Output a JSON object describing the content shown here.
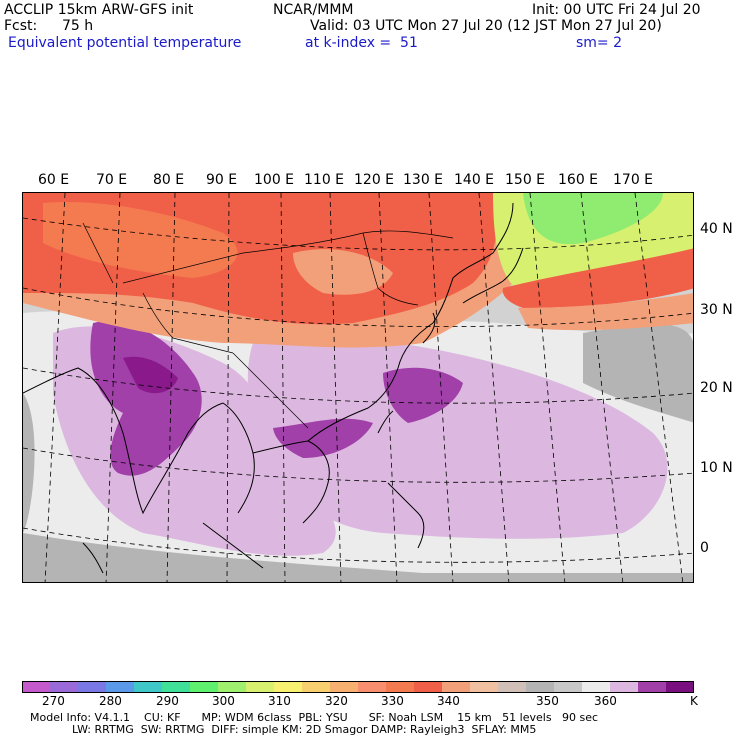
{
  "header": {
    "model": "ACCLIP 15km ARW-GFS init",
    "org": "NCAR/MMM",
    "init": "Init: 00 UTC Fri 24 Jul 20",
    "fcst_label": "Fcst:",
    "fcst_value": "75 h",
    "valid": "Valid: 03 UTC Mon 27 Jul 20 (12 JST Mon 27 Jul 20)",
    "field": "Equivalent potential temperature",
    "level": "at k-index =  51",
    "smooth": "sm= 2"
  },
  "map": {
    "lon_labels": [
      "60 E",
      "70 E",
      "80 E",
      "90 E",
      "100 E",
      "110 E",
      "120 E",
      "130 E",
      "140 E",
      "150 E",
      "160 E",
      "170 E"
    ],
    "lat_labels": [
      "40 N",
      "30 N",
      "20 N",
      "10 N",
      "0"
    ],
    "colors": {
      "purple_dark": "#8a1a8c",
      "purple_mid": "#a040a8",
      "lavender": "#dcb8e0",
      "gray_light": "#ececec",
      "gray_mid": "#d2d2d2",
      "gray_dark": "#b4b4b4",
      "salmon": "#f2a07a",
      "red": "#f06048",
      "orange_red": "#f47a50",
      "yellow_green": "#d8f070",
      "green": "#90ec70"
    }
  },
  "colorbar": {
    "unit": "K",
    "labels": [
      "270",
      "280",
      "290",
      "300",
      "310",
      "320",
      "330",
      "340",
      "350",
      "360"
    ],
    "colors": [
      "#c45acc",
      "#9a6ad8",
      "#7a78e4",
      "#5a9ae8",
      "#40c8c8",
      "#40e098",
      "#60f070",
      "#a0f070",
      "#d8f070",
      "#f8f070",
      "#f8d070",
      "#f8b070",
      "#f89070",
      "#f47a50",
      "#f06048",
      "#f2a07a",
      "#f0c0a0",
      "#d0c0b8",
      "#b4b4b4",
      "#c8c8c8",
      "#ececec",
      "#dcb8e0",
      "#a040a8",
      "#7a1080"
    ]
  },
  "model_info": {
    "line1": "Model Info: V4.1.1    CU: KF      MP: WDM 6class  PBL: YSU      SF: Noah LSM    15 km   51 levels   90 sec",
    "line2": "            LW: RRTMG  SW: RRTMG  DIFF: simple KM: 2D Smagor DAMP: Rayleigh3  SFLAY: MM5"
  }
}
